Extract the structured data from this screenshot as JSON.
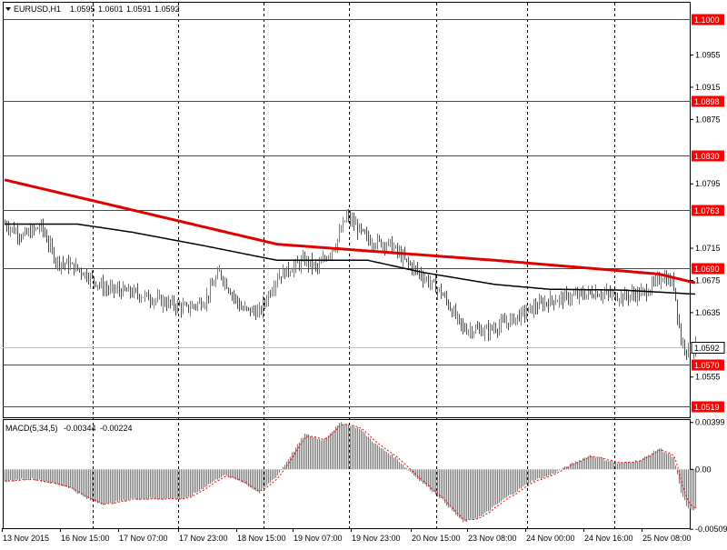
{
  "chart_data": [
    {
      "type": "candlestick",
      "symbol_header": "EURUSD,H1",
      "ohlc_header": [
        "1.0595",
        "1.0601",
        "1.0591",
        "1.0592"
      ],
      "ylim": [
        1.0505,
        1.102
      ],
      "price_ticks": [
        "1.0955",
        "1.0915",
        "1.0875",
        "1.0795",
        "1.0715",
        "1.0675",
        "1.0635",
        "1.0555"
      ],
      "current_price": "1.0592",
      "current_price_value": 1.0592,
      "horizontal_levels": [
        {
          "label": "1.1000",
          "value": 1.1
        },
        {
          "label": "1.0898",
          "value": 1.0898
        },
        {
          "label": "1.0830",
          "value": 1.083
        },
        {
          "label": "1.0763",
          "value": 1.0763
        },
        {
          "label": "1.0690",
          "value": 1.069
        },
        {
          "label": "1.0570",
          "value": 1.057
        },
        {
          "label": "1.0519",
          "value": 1.0519
        }
      ],
      "bull_color": "#1e90ff",
      "bear_color": "#ff0000",
      "level_color": "#ff0000",
      "anchors": [
        [
          0,
          1.0745
        ],
        [
          10,
          1.073
        ],
        [
          20,
          1.0742
        ],
        [
          28,
          1.07
        ],
        [
          40,
          1.069
        ],
        [
          55,
          1.0665
        ],
        [
          70,
          1.066
        ],
        [
          85,
          1.065
        ],
        [
          100,
          1.064
        ],
        [
          110,
          1.065
        ],
        [
          118,
          1.0685
        ],
        [
          130,
          1.064
        ],
        [
          140,
          1.0635
        ],
        [
          150,
          1.068
        ],
        [
          165,
          1.07
        ],
        [
          172,
          1.069
        ],
        [
          182,
          1.072
        ],
        [
          188,
          1.0755
        ],
        [
          200,
          1.0725
        ],
        [
          212,
          1.072
        ],
        [
          220,
          1.07
        ],
        [
          230,
          1.068
        ],
        [
          240,
          1.066
        ],
        [
          252,
          1.0615
        ],
        [
          265,
          1.0612
        ],
        [
          278,
          1.0625
        ],
        [
          290,
          1.064
        ],
        [
          300,
          1.065
        ],
        [
          312,
          1.0655
        ],
        [
          325,
          1.066
        ],
        [
          340,
          1.0655
        ],
        [
          352,
          1.066
        ],
        [
          362,
          1.068
        ],
        [
          368,
          1.067
        ],
        [
          372,
          1.06
        ],
        [
          375,
          1.059
        ],
        [
          380,
          1.0592
        ]
      ],
      "sma_anchors": [
        [
          0,
          1.0745
        ],
        [
          40,
          1.0745
        ],
        [
          70,
          1.0735
        ],
        [
          110,
          1.0718
        ],
        [
          150,
          1.07
        ],
        [
          200,
          1.07
        ],
        [
          230,
          1.0685
        ],
        [
          270,
          1.067
        ],
        [
          300,
          1.0664
        ],
        [
          340,
          1.0663
        ],
        [
          380,
          1.0658
        ]
      ],
      "ema_anchors": [
        [
          0,
          1.08
        ],
        [
          150,
          1.072
        ],
        [
          270,
          1.07
        ],
        [
          360,
          1.0683
        ],
        [
          380,
          1.0672
        ]
      ]
    },
    {
      "type": "histogram",
      "title": "MACD(5,34,5)",
      "values_header": [
        "-0.00344",
        "-0.00224"
      ],
      "ylim": [
        -0.005,
        0.0042
      ],
      "ticks": [
        "0.00399",
        "0.00",
        "-0.00509"
      ],
      "histogram_color": "#808080",
      "signal_color": "#ff0000",
      "anchors": [
        [
          0,
          -0.001
        ],
        [
          15,
          -0.0008
        ],
        [
          35,
          -0.0015
        ],
        [
          45,
          -0.0025
        ],
        [
          55,
          -0.003
        ],
        [
          70,
          -0.0025
        ],
        [
          85,
          -0.0025
        ],
        [
          100,
          -0.0025
        ],
        [
          120,
          -0.0005
        ],
        [
          130,
          -0.001
        ],
        [
          140,
          -0.002
        ],
        [
          150,
          -0.0005
        ],
        [
          165,
          0.003
        ],
        [
          175,
          0.0025
        ],
        [
          185,
          0.004
        ],
        [
          195,
          0.0035
        ],
        [
          205,
          0.002
        ],
        [
          215,
          0.001
        ],
        [
          225,
          -0.0005
        ],
        [
          240,
          -0.0025
        ],
        [
          252,
          -0.0045
        ],
        [
          262,
          -0.004
        ],
        [
          275,
          -0.0025
        ],
        [
          290,
          -0.001
        ],
        [
          300,
          -0.0005
        ],
        [
          312,
          0.0005
        ],
        [
          322,
          0.0012
        ],
        [
          338,
          0.0005
        ],
        [
          350,
          0.0008
        ],
        [
          360,
          0.0018
        ],
        [
          368,
          0.001
        ],
        [
          372,
          -0.002
        ],
        [
          376,
          -0.0034
        ],
        [
          380,
          -0.0034
        ]
      ]
    }
  ],
  "time_labels": [
    "13 Nov 2015",
    "16 Nov 15:00",
    "17 Nov 07:00",
    "17 Nov 23:00",
    "18 Nov 15:00",
    "19 Nov 07:00",
    "19 Nov 23:00",
    "20 Nov 15:00",
    "23 Nov 08:00",
    "24 Nov 00:00",
    "24 Nov 16:00",
    "25 Nov 08:00"
  ]
}
